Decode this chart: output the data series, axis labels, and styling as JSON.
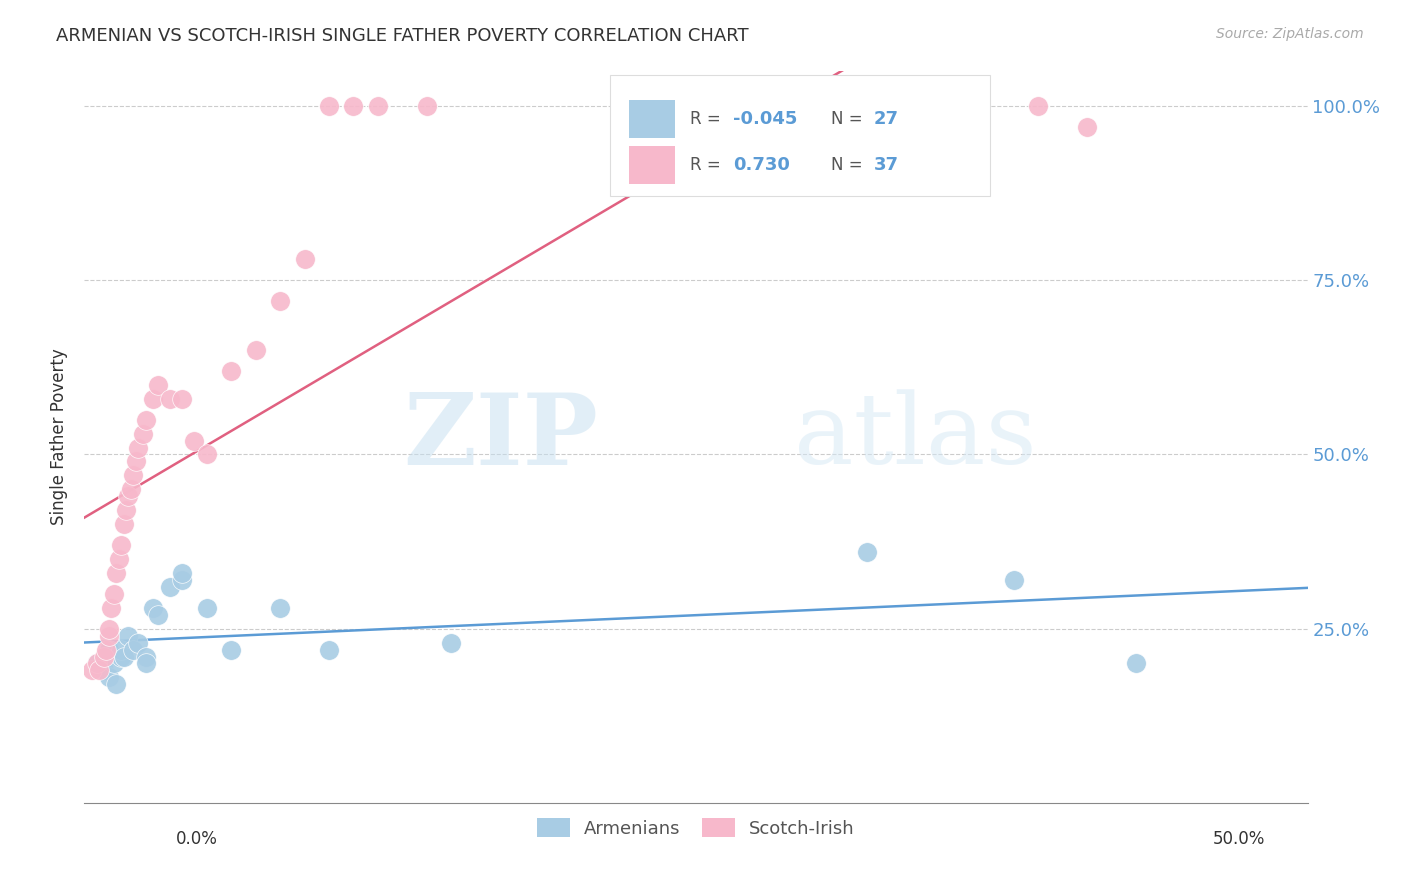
{
  "title": "ARMENIAN VS SCOTCH-IRISH SINGLE FATHER POVERTY CORRELATION CHART",
  "source": "Source: ZipAtlas.com",
  "ylabel": "Single Father Poverty",
  "xlim": [
    0.0,
    0.5
  ],
  "ylim": [
    0.0,
    1.05
  ],
  "legend_armenian_R": "-0.045",
  "legend_armenian_N": "27",
  "legend_scotch_R": "0.730",
  "legend_scotch_N": "37",
  "color_armenian": "#a8cce4",
  "color_scotch": "#f7b8cb",
  "color_armenian_line": "#5b9bd5",
  "color_scotch_line": "#e06080",
  "watermark_zip": "ZIP",
  "watermark_atlas": "atlas",
  "armenian_x": [
    0.005,
    0.008,
    0.01,
    0.01,
    0.012,
    0.013,
    0.015,
    0.015,
    0.016,
    0.018,
    0.02,
    0.022,
    0.025,
    0.025,
    0.028,
    0.03,
    0.035,
    0.04,
    0.04,
    0.05,
    0.06,
    0.08,
    0.1,
    0.15,
    0.32,
    0.38,
    0.43
  ],
  "armenian_y": [
    0.2,
    0.19,
    0.22,
    0.18,
    0.2,
    0.17,
    0.21,
    0.22,
    0.21,
    0.24,
    0.22,
    0.23,
    0.21,
    0.2,
    0.28,
    0.27,
    0.31,
    0.32,
    0.33,
    0.28,
    0.22,
    0.28,
    0.22,
    0.23,
    0.36,
    0.32,
    0.2
  ],
  "scotch_x": [
    0.003,
    0.005,
    0.006,
    0.008,
    0.009,
    0.01,
    0.01,
    0.011,
    0.012,
    0.013,
    0.014,
    0.015,
    0.016,
    0.017,
    0.018,
    0.019,
    0.02,
    0.021,
    0.022,
    0.024,
    0.025,
    0.028,
    0.03,
    0.035,
    0.04,
    0.045,
    0.05,
    0.06,
    0.07,
    0.08,
    0.09,
    0.1,
    0.11,
    0.12,
    0.14,
    0.39,
    0.41
  ],
  "scotch_y": [
    0.19,
    0.2,
    0.19,
    0.21,
    0.22,
    0.24,
    0.25,
    0.28,
    0.3,
    0.33,
    0.35,
    0.37,
    0.4,
    0.42,
    0.44,
    0.45,
    0.47,
    0.49,
    0.51,
    0.53,
    0.55,
    0.58,
    0.6,
    0.58,
    0.58,
    0.52,
    0.5,
    0.62,
    0.65,
    0.72,
    0.78,
    1.0,
    1.0,
    1.0,
    1.0,
    1.0,
    0.97
  ],
  "ytick_vals": [
    0.0,
    0.25,
    0.5,
    0.75,
    1.0
  ],
  "ytick_labels_right": [
    "",
    "25.0%",
    "50.0%",
    "75.0%",
    "100.0%"
  ],
  "xtick_label_left": "0.0%",
  "xtick_label_right": "50.0%"
}
